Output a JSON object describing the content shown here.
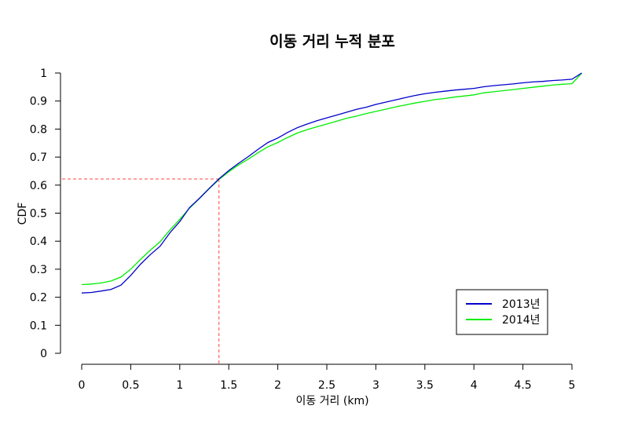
{
  "chart_data": {
    "type": "line",
    "title": "이동 거리 누적 분포",
    "xlabel": "이동 거리 (km)",
    "ylabel": "CDF",
    "xlim": [
      0,
      5
    ],
    "ylim": [
      0,
      1
    ],
    "x_ticks": [
      "0",
      "0.5",
      "1",
      "1.5",
      "2",
      "2.5",
      "3",
      "3.5",
      "4",
      "4.5",
      "5"
    ],
    "y_ticks": [
      "0",
      "0.1",
      "0.2",
      "0.3",
      "0.4",
      "0.5",
      "0.6",
      "0.7",
      "0.8",
      "0.9",
      "1"
    ],
    "grid": false,
    "legend_position": "bottom-right",
    "series": [
      {
        "name": "2013년",
        "color": "#0000cc",
        "points": [
          [
            0,
            0.215
          ],
          [
            0.1,
            0.217
          ],
          [
            0.2,
            0.222
          ],
          [
            0.3,
            0.228
          ],
          [
            0.4,
            0.243
          ],
          [
            0.5,
            0.278
          ],
          [
            0.6,
            0.318
          ],
          [
            0.7,
            0.352
          ],
          [
            0.8,
            0.382
          ],
          [
            0.9,
            0.43
          ],
          [
            1.0,
            0.47
          ],
          [
            1.1,
            0.52
          ],
          [
            1.2,
            0.553
          ],
          [
            1.3,
            0.588
          ],
          [
            1.4,
            0.622
          ],
          [
            1.5,
            0.652
          ],
          [
            1.6,
            0.678
          ],
          [
            1.7,
            0.702
          ],
          [
            1.8,
            0.728
          ],
          [
            1.9,
            0.752
          ],
          [
            2.0,
            0.768
          ],
          [
            2.1,
            0.788
          ],
          [
            2.2,
            0.805
          ],
          [
            2.3,
            0.818
          ],
          [
            2.4,
            0.83
          ],
          [
            2.5,
            0.84
          ],
          [
            2.6,
            0.85
          ],
          [
            2.7,
            0.86
          ],
          [
            2.8,
            0.87
          ],
          [
            2.9,
            0.878
          ],
          [
            3.0,
            0.888
          ],
          [
            3.1,
            0.896
          ],
          [
            3.2,
            0.904
          ],
          [
            3.3,
            0.912
          ],
          [
            3.4,
            0.92
          ],
          [
            3.5,
            0.926
          ],
          [
            3.6,
            0.931
          ],
          [
            3.7,
            0.935
          ],
          [
            3.8,
            0.939
          ],
          [
            3.9,
            0.942
          ],
          [
            4.0,
            0.945
          ],
          [
            4.1,
            0.951
          ],
          [
            4.2,
            0.955
          ],
          [
            4.3,
            0.958
          ],
          [
            4.4,
            0.961
          ],
          [
            4.5,
            0.965
          ],
          [
            4.6,
            0.968
          ],
          [
            4.7,
            0.97
          ],
          [
            4.8,
            0.973
          ],
          [
            4.9,
            0.975
          ],
          [
            5.0,
            0.978
          ],
          [
            5.1,
            1.0
          ]
        ]
      },
      {
        "name": "2014년",
        "color": "#00ee00",
        "points": [
          [
            0,
            0.245
          ],
          [
            0.1,
            0.247
          ],
          [
            0.2,
            0.251
          ],
          [
            0.3,
            0.258
          ],
          [
            0.4,
            0.272
          ],
          [
            0.5,
            0.3
          ],
          [
            0.6,
            0.335
          ],
          [
            0.7,
            0.368
          ],
          [
            0.8,
            0.398
          ],
          [
            0.9,
            0.44
          ],
          [
            1.0,
            0.478
          ],
          [
            1.1,
            0.518
          ],
          [
            1.2,
            0.552
          ],
          [
            1.3,
            0.587
          ],
          [
            1.4,
            0.62
          ],
          [
            1.5,
            0.648
          ],
          [
            1.6,
            0.672
          ],
          [
            1.7,
            0.693
          ],
          [
            1.8,
            0.716
          ],
          [
            1.9,
            0.737
          ],
          [
            2.0,
            0.752
          ],
          [
            2.1,
            0.77
          ],
          [
            2.2,
            0.786
          ],
          [
            2.3,
            0.798
          ],
          [
            2.4,
            0.808
          ],
          [
            2.5,
            0.818
          ],
          [
            2.6,
            0.828
          ],
          [
            2.7,
            0.838
          ],
          [
            2.8,
            0.846
          ],
          [
            2.9,
            0.855
          ],
          [
            3.0,
            0.863
          ],
          [
            3.1,
            0.871
          ],
          [
            3.2,
            0.879
          ],
          [
            3.3,
            0.886
          ],
          [
            3.4,
            0.893
          ],
          [
            3.5,
            0.899
          ],
          [
            3.6,
            0.905
          ],
          [
            3.7,
            0.909
          ],
          [
            3.8,
            0.914
          ],
          [
            3.9,
            0.918
          ],
          [
            4.0,
            0.922
          ],
          [
            4.1,
            0.929
          ],
          [
            4.2,
            0.933
          ],
          [
            4.3,
            0.937
          ],
          [
            4.4,
            0.941
          ],
          [
            4.5,
            0.945
          ],
          [
            4.6,
            0.949
          ],
          [
            4.7,
            0.953
          ],
          [
            4.8,
            0.957
          ],
          [
            4.9,
            0.96
          ],
          [
            5.0,
            0.962
          ],
          [
            5.1,
            1.0
          ]
        ]
      }
    ],
    "reference_point": {
      "x": 1.4,
      "y": 0.622,
      "color": "#ff4444"
    }
  }
}
